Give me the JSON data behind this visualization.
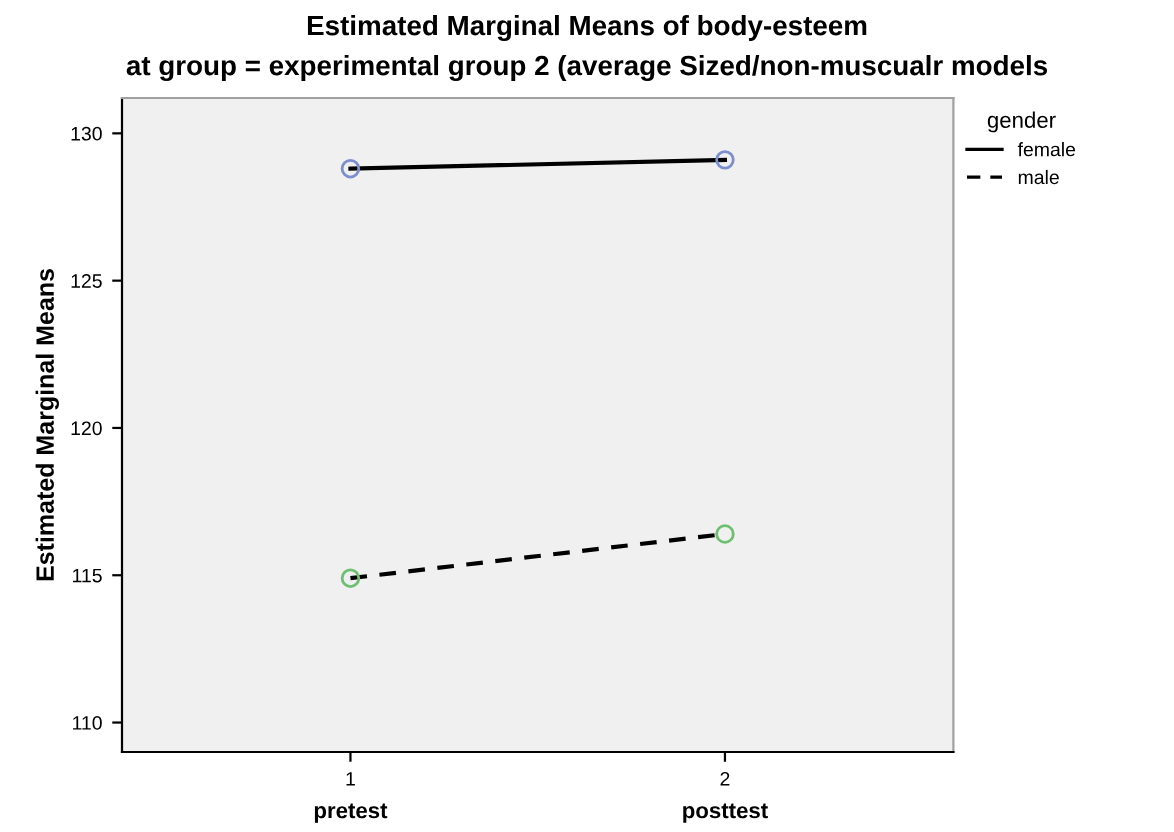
{
  "chart_data": {
    "type": "line",
    "title": "Estimated Marginal Means of body-esteem",
    "subtitle": "at group = experimental group 2 (average Sized/non-muscualr models",
    "ylabel": "Estimated Marginal Means",
    "legend_title": "gender",
    "x": [
      1,
      2
    ],
    "xlim": [
      0.39,
      2.61
    ],
    "xticks": [
      1,
      2
    ],
    "ylim": [
      109.0,
      131.2
    ],
    "yticks": [
      110,
      115,
      120,
      125,
      130
    ],
    "series": [
      {
        "name": "female",
        "color": "#000000",
        "values": [
          128.8,
          129.1
        ],
        "line_style": "solid"
      },
      {
        "name": "male",
        "color": "#000000",
        "values": [
          114.9,
          116.4
        ],
        "line_style": "dashed"
      }
    ],
    "annotations": [
      "pretest",
      "posttest"
    ],
    "marker": "circle",
    "grid": false,
    "legend": "top right"
  }
}
